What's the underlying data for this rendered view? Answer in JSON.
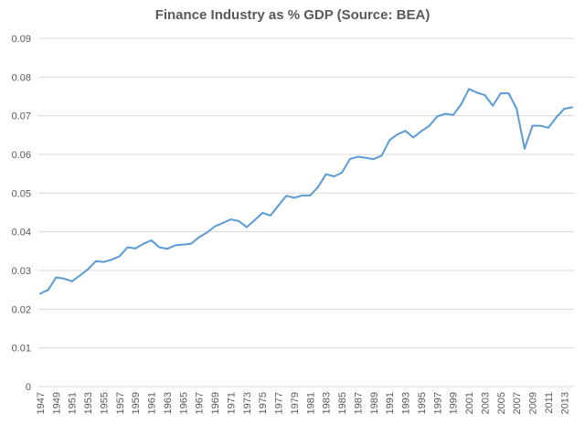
{
  "chart_data": {
    "type": "line",
    "title": "Finance Industry as % GDP (Source: BEA)",
    "xlabel": "",
    "ylabel": "",
    "ylim": [
      0,
      0.09
    ],
    "yticks": [
      "0",
      "0.01",
      "0.02",
      "0.03",
      "0.04",
      "0.05",
      "0.06",
      "0.07",
      "0.08",
      "0.09"
    ],
    "xtick_labels": [
      "1947",
      "1949",
      "1951",
      "1953",
      "1955",
      "1957",
      "1959",
      "1961",
      "1963",
      "1965",
      "1967",
      "1969",
      "1971",
      "1973",
      "1975",
      "1977",
      "1979",
      "1981",
      "1983",
      "1985",
      "1987",
      "1989",
      "1991",
      "1993",
      "1995",
      "1997",
      "1999",
      "2001",
      "2003",
      "2005",
      "2007",
      "2009",
      "2011",
      "2013"
    ],
    "grid": true,
    "legend": "none",
    "line_color": "#5b9bd5",
    "x": [
      1947,
      1948,
      1949,
      1950,
      1951,
      1952,
      1953,
      1954,
      1955,
      1956,
      1957,
      1958,
      1959,
      1960,
      1961,
      1962,
      1963,
      1964,
      1965,
      1966,
      1967,
      1968,
      1969,
      1970,
      1971,
      1972,
      1973,
      1974,
      1975,
      1976,
      1977,
      1978,
      1979,
      1980,
      1981,
      1982,
      1983,
      1984,
      1985,
      1986,
      1987,
      1988,
      1989,
      1990,
      1991,
      1992,
      1993,
      1994,
      1995,
      1996,
      1997,
      1998,
      1999,
      2000,
      2001,
      2002,
      2003,
      2004,
      2005,
      2006,
      2007,
      2008,
      2009,
      2010,
      2011,
      2012,
      2013,
      2014
    ],
    "values": [
      0.024,
      0.025,
      0.0282,
      0.0279,
      0.0272,
      0.0287,
      0.0303,
      0.0324,
      0.0322,
      0.0328,
      0.0337,
      0.036,
      0.0357,
      0.0369,
      0.0378,
      0.036,
      0.0356,
      0.0365,
      0.0367,
      0.0369,
      0.0386,
      0.0398,
      0.0414,
      0.0423,
      0.0432,
      0.0428,
      0.0412,
      0.043,
      0.0449,
      0.0442,
      0.0468,
      0.0493,
      0.0488,
      0.0494,
      0.0494,
      0.0516,
      0.0549,
      0.0543,
      0.0553,
      0.0588,
      0.0594,
      0.0591,
      0.0588,
      0.0597,
      0.0637,
      0.0652,
      0.0661,
      0.0644,
      0.066,
      0.0674,
      0.0698,
      0.0705,
      0.0702,
      0.0729,
      0.0769,
      0.076,
      0.0753,
      0.0726,
      0.0758,
      0.0758,
      0.0718,
      0.0615,
      0.0674,
      0.0674,
      0.0669,
      0.0696,
      0.0718,
      0.0722
    ]
  }
}
